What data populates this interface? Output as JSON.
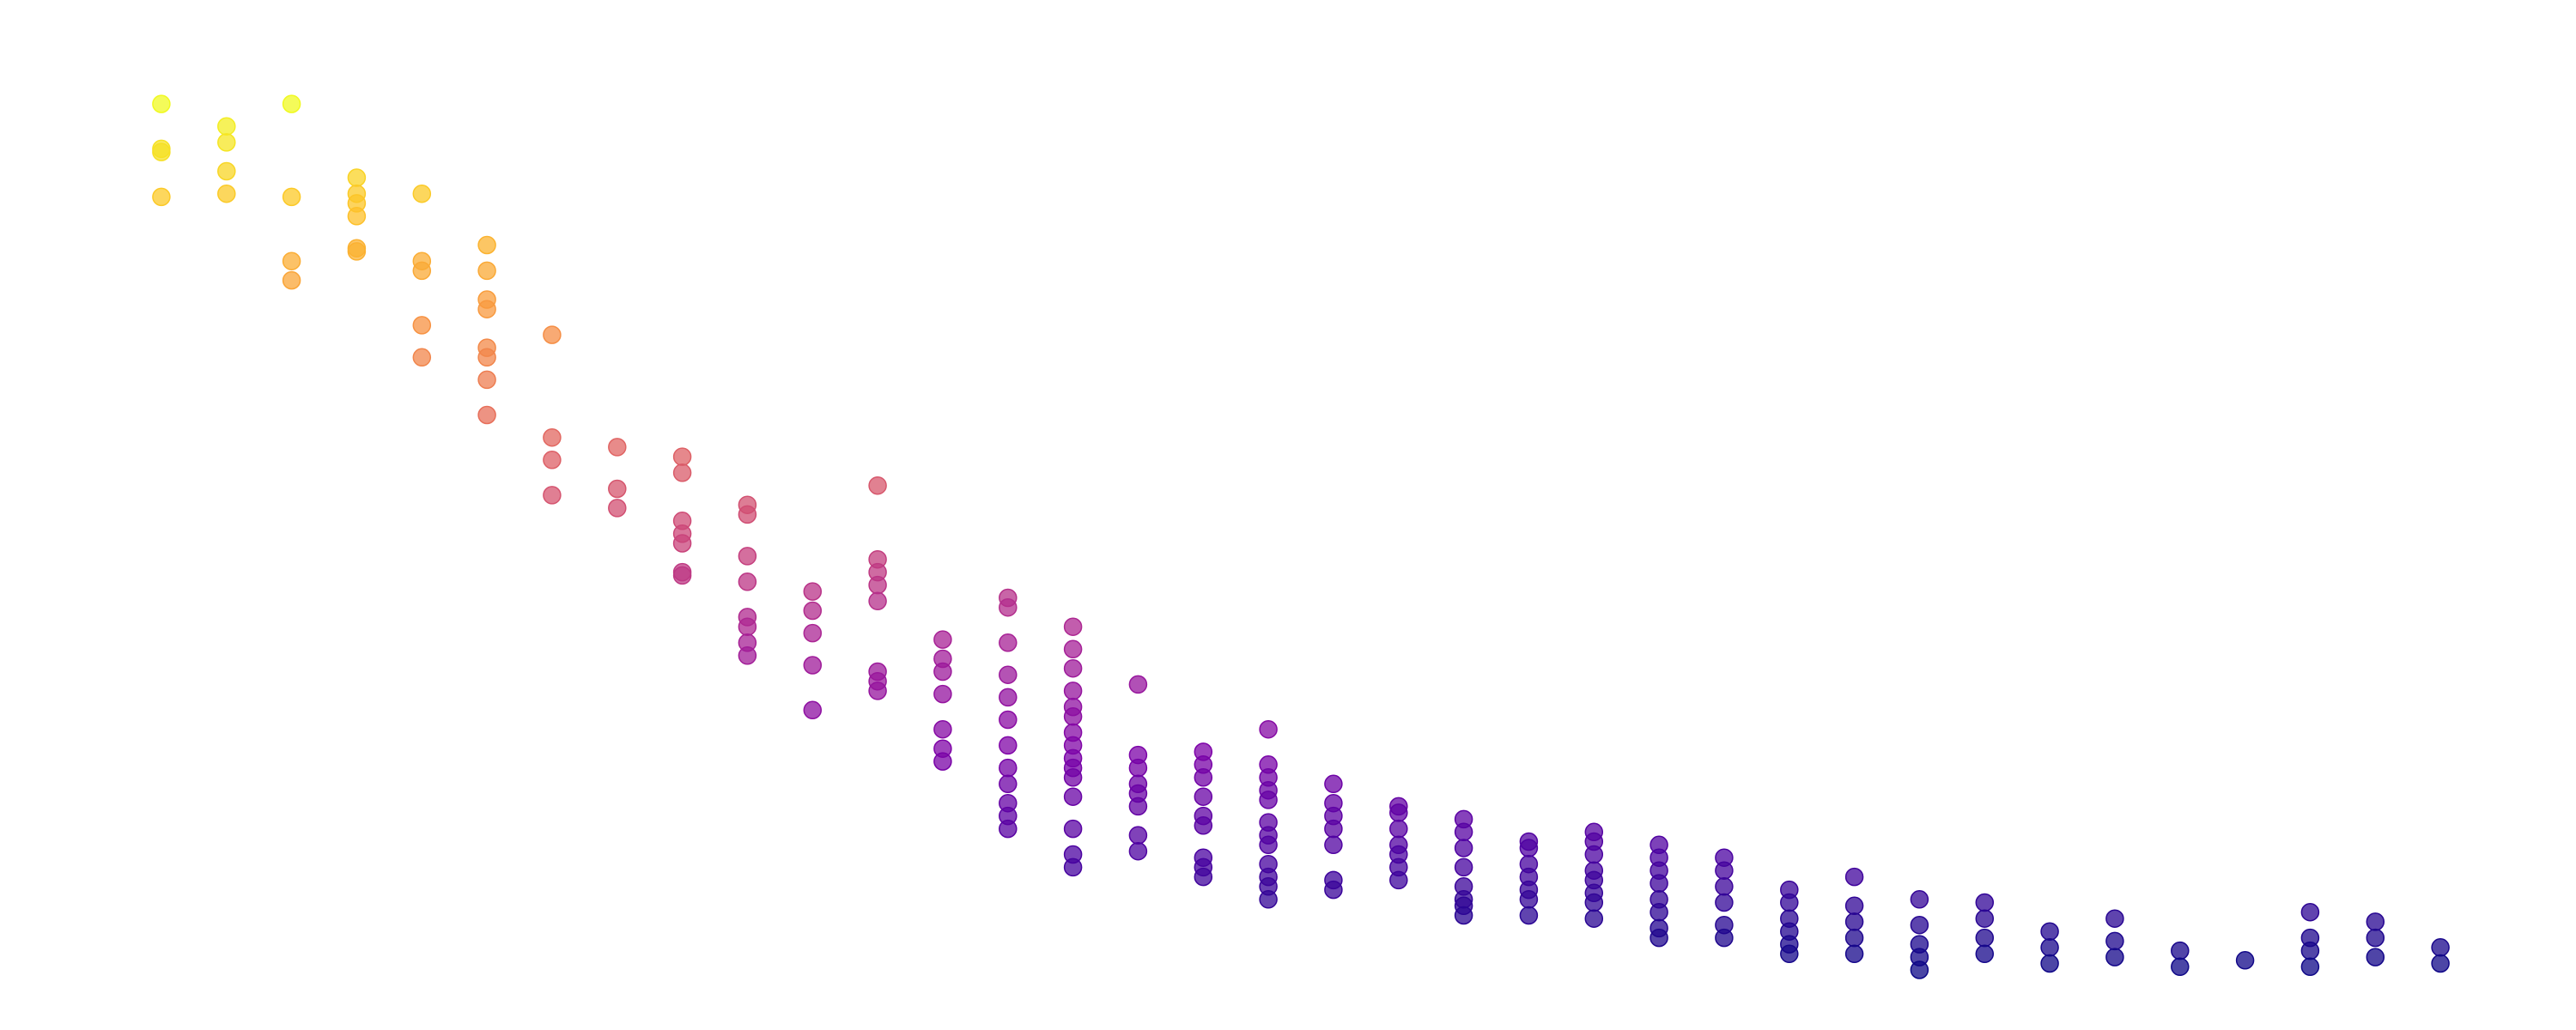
{
  "chart_data": {
    "type": "scatter",
    "title": "",
    "xlabel": "",
    "ylabel": "",
    "grid": false,
    "legend": "none",
    "axes_visible": false,
    "colormap": "plasma",
    "color_encodes": "y",
    "marker_alpha": 0.75,
    "xlim": [
      -0.5,
      35.5
    ],
    "ylim": [
      -1.0,
      27.5
    ],
    "series": [
      {
        "points": [
          [
            0,
            26.0
          ],
          [
            0,
            24.6
          ],
          [
            0,
            24.5
          ],
          [
            0,
            23.1
          ],
          [
            1,
            25.3
          ],
          [
            1,
            24.8
          ],
          [
            1,
            23.9
          ],
          [
            1,
            23.2
          ],
          [
            2,
            26.0
          ],
          [
            2,
            23.1
          ],
          [
            2,
            21.1
          ],
          [
            2,
            20.5
          ],
          [
            3,
            23.7
          ],
          [
            3,
            23.2
          ],
          [
            3,
            22.9
          ],
          [
            3,
            22.5
          ],
          [
            3,
            21.5
          ],
          [
            3,
            21.4
          ],
          [
            4,
            21.1
          ],
          [
            4,
            20.8
          ],
          [
            4,
            23.2
          ],
          [
            4,
            19.1
          ],
          [
            4,
            18.1
          ],
          [
            5,
            21.6
          ],
          [
            5,
            20.8
          ],
          [
            5,
            19.9
          ],
          [
            5,
            19.6
          ],
          [
            5,
            18.4
          ],
          [
            5,
            18.1
          ],
          [
            5,
            17.4
          ],
          [
            5,
            16.3
          ],
          [
            6,
            18.8
          ],
          [
            6,
            15.6
          ],
          [
            6,
            14.9
          ],
          [
            6,
            13.8
          ],
          [
            7,
            15.3
          ],
          [
            7,
            14.0
          ],
          [
            7,
            13.4
          ],
          [
            8,
            15.0
          ],
          [
            8,
            14.5
          ],
          [
            8,
            13.0
          ],
          [
            8,
            12.6
          ],
          [
            8,
            12.3
          ],
          [
            8,
            11.4
          ],
          [
            8,
            11.3
          ],
          [
            9,
            13.5
          ],
          [
            9,
            13.2
          ],
          [
            9,
            11.9
          ],
          [
            9,
            11.1
          ],
          [
            9,
            10.0
          ],
          [
            9,
            9.7
          ],
          [
            9,
            9.2
          ],
          [
            9,
            8.8
          ],
          [
            10,
            10.8
          ],
          [
            10,
            10.2
          ],
          [
            10,
            9.5
          ],
          [
            10,
            8.5
          ],
          [
            10,
            7.1
          ],
          [
            11,
            14.1
          ],
          [
            11,
            11.8
          ],
          [
            11,
            11.4
          ],
          [
            11,
            11.0
          ],
          [
            11,
            10.5
          ],
          [
            11,
            8.3
          ],
          [
            11,
            8.0
          ],
          [
            11,
            7.7
          ],
          [
            12,
            9.3
          ],
          [
            12,
            8.7
          ],
          [
            12,
            8.3
          ],
          [
            12,
            7.6
          ],
          [
            12,
            6.5
          ],
          [
            12,
            5.9
          ],
          [
            12,
            5.5
          ],
          [
            13,
            10.6
          ],
          [
            13,
            10.3
          ],
          [
            13,
            9.2
          ],
          [
            13,
            8.2
          ],
          [
            13,
            7.5
          ],
          [
            13,
            6.8
          ],
          [
            13,
            6.0
          ],
          [
            13,
            5.3
          ],
          [
            13,
            4.8
          ],
          [
            13,
            4.2
          ],
          [
            13,
            3.8
          ],
          [
            13,
            3.4
          ],
          [
            14,
            9.7
          ],
          [
            14,
            9.0
          ],
          [
            14,
            8.4
          ],
          [
            14,
            7.7
          ],
          [
            14,
            7.2
          ],
          [
            14,
            6.9
          ],
          [
            14,
            6.4
          ],
          [
            14,
            6.0
          ],
          [
            14,
            5.6
          ],
          [
            14,
            5.3
          ],
          [
            14,
            5.0
          ],
          [
            14,
            4.4
          ],
          [
            14,
            3.4
          ],
          [
            14,
            2.6
          ],
          [
            14,
            2.2
          ],
          [
            15,
            7.9
          ],
          [
            15,
            5.7
          ],
          [
            15,
            5.3
          ],
          [
            15,
            4.8
          ],
          [
            15,
            4.5
          ],
          [
            15,
            4.1
          ],
          [
            15,
            3.2
          ],
          [
            15,
            2.7
          ],
          [
            16,
            5.8
          ],
          [
            16,
            5.4
          ],
          [
            16,
            5.0
          ],
          [
            16,
            4.4
          ],
          [
            16,
            3.8
          ],
          [
            16,
            3.5
          ],
          [
            16,
            2.5
          ],
          [
            16,
            2.2
          ],
          [
            16,
            1.9
          ],
          [
            17,
            6.5
          ],
          [
            17,
            5.4
          ],
          [
            17,
            5.0
          ],
          [
            17,
            4.6
          ],
          [
            17,
            4.3
          ],
          [
            17,
            3.6
          ],
          [
            17,
            3.2
          ],
          [
            17,
            2.9
          ],
          [
            17,
            2.3
          ],
          [
            17,
            1.9
          ],
          [
            17,
            1.6
          ],
          [
            17,
            1.2
          ],
          [
            18,
            4.8
          ],
          [
            18,
            4.2
          ],
          [
            18,
            3.8
          ],
          [
            18,
            3.4
          ],
          [
            18,
            2.9
          ],
          [
            18,
            1.8
          ],
          [
            18,
            1.5
          ],
          [
            19,
            4.1
          ],
          [
            19,
            3.9
          ],
          [
            19,
            3.4
          ],
          [
            19,
            2.9
          ],
          [
            19,
            2.6
          ],
          [
            19,
            2.2
          ],
          [
            19,
            1.8
          ],
          [
            20,
            3.7
          ],
          [
            20,
            3.3
          ],
          [
            20,
            2.8
          ],
          [
            20,
            2.2
          ],
          [
            20,
            1.6
          ],
          [
            20,
            1.2
          ],
          [
            20,
            1.0
          ],
          [
            20,
            0.7
          ],
          [
            21,
            3.0
          ],
          [
            21,
            2.8
          ],
          [
            21,
            2.3
          ],
          [
            21,
            1.9
          ],
          [
            21,
            1.5
          ],
          [
            21,
            1.2
          ],
          [
            21,
            0.7
          ],
          [
            22,
            3.3
          ],
          [
            22,
            3.0
          ],
          [
            22,
            2.6
          ],
          [
            22,
            2.1
          ],
          [
            22,
            1.8
          ],
          [
            22,
            1.4
          ],
          [
            22,
            1.1
          ],
          [
            22,
            0.6
          ],
          [
            23,
            2.9
          ],
          [
            23,
            2.5
          ],
          [
            23,
            2.1
          ],
          [
            23,
            1.7
          ],
          [
            23,
            1.2
          ],
          [
            23,
            0.8
          ],
          [
            23,
            0.3
          ],
          [
            23,
            0.0
          ],
          [
            24,
            2.5
          ],
          [
            24,
            2.1
          ],
          [
            24,
            1.6
          ],
          [
            24,
            1.1
          ],
          [
            24,
            0.4
          ],
          [
            24,
            0.0
          ],
          [
            25,
            1.5
          ],
          [
            25,
            1.1
          ],
          [
            25,
            0.6
          ],
          [
            25,
            0.2
          ],
          [
            25,
            -0.2
          ],
          [
            25,
            -0.5
          ],
          [
            26,
            1.9
          ],
          [
            26,
            1.0
          ],
          [
            26,
            0.5
          ],
          [
            26,
            0.0
          ],
          [
            26,
            -0.5
          ],
          [
            27,
            1.2
          ],
          [
            27,
            0.4
          ],
          [
            27,
            -0.2
          ],
          [
            27,
            -0.6
          ],
          [
            27,
            -1.0
          ],
          [
            28,
            1.1
          ],
          [
            28,
            0.6
          ],
          [
            28,
            0.0
          ],
          [
            28,
            -0.5
          ],
          [
            29,
            0.2
          ],
          [
            29,
            -0.3
          ],
          [
            29,
            -0.8
          ],
          [
            30,
            0.6
          ],
          [
            30,
            -0.1
          ],
          [
            30,
            -0.6
          ],
          [
            31,
            -0.4
          ],
          [
            31,
            -0.9
          ],
          [
            32,
            -0.7
          ],
          [
            33,
            0.8
          ],
          [
            33,
            0.0
          ],
          [
            33,
            -0.4
          ],
          [
            33,
            -0.9
          ],
          [
            34,
            0.5
          ],
          [
            34,
            0.0
          ],
          [
            34,
            -0.6
          ],
          [
            35,
            -0.3
          ],
          [
            35,
            -0.8
          ]
        ]
      }
    ]
  }
}
